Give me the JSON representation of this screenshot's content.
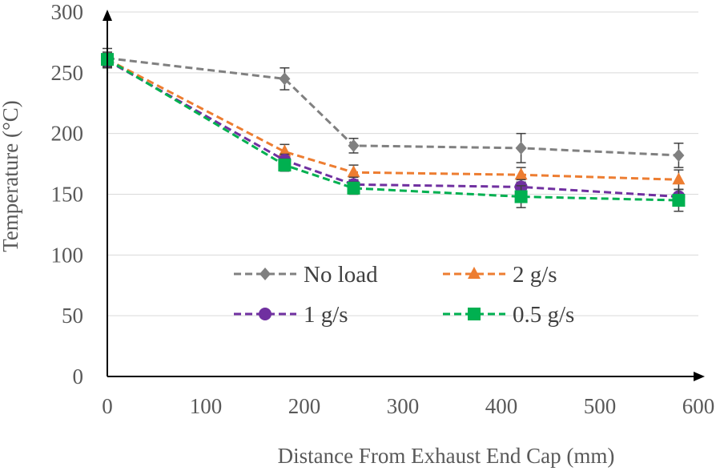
{
  "chart_data": {
    "type": "line",
    "title": "",
    "xlabel": "Distance From Exhaust End Cap (mm)",
    "ylabel": "Temperature (°C)",
    "xlim": [
      0,
      600
    ],
    "ylim": [
      0,
      300
    ],
    "x_ticks": [
      "0",
      "100",
      "200",
      "300",
      "400",
      "500",
      "600"
    ],
    "y_ticks": [
      "0",
      "50",
      "100",
      "150",
      "200",
      "250",
      "300"
    ],
    "grid": true,
    "legend_position": "center",
    "series": [
      {
        "name": "No load",
        "color": "#808080",
        "marker": "diamond",
        "x": [
          0,
          180,
          250,
          420,
          580
        ],
        "y": [
          262,
          245,
          190,
          188,
          182
        ],
        "error": [
          8,
          9,
          6,
          12,
          10
        ]
      },
      {
        "name": "2 g/s",
        "color": "#ed7d31",
        "marker": "triangle",
        "x": [
          0,
          180,
          250,
          420,
          580
        ],
        "y": [
          261,
          185,
          168,
          166,
          162
        ],
        "error": [
          6,
          6,
          6,
          6,
          8
        ]
      },
      {
        "name": "1 g/s",
        "color": "#7030a0",
        "marker": "circle",
        "x": [
          0,
          180,
          250,
          420,
          580
        ],
        "y": [
          260,
          178,
          158,
          156,
          148
        ],
        "error": [
          5,
          5,
          6,
          6,
          6
        ]
      },
      {
        "name": "0.5 g/s",
        "color": "#00b050",
        "marker": "square",
        "x": [
          0,
          180,
          250,
          420,
          580
        ],
        "y": [
          261,
          174,
          155,
          148,
          145
        ],
        "error": [
          5,
          5,
          5,
          9,
          9
        ]
      }
    ]
  }
}
